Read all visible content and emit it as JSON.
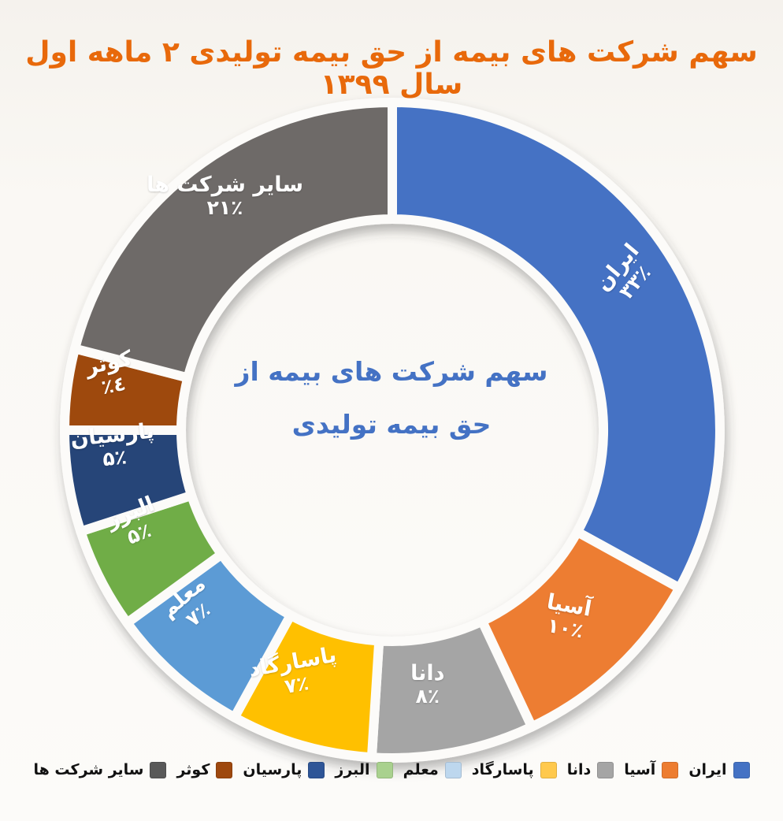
{
  "page": {
    "background": "#FAF8F4"
  },
  "title": {
    "text": "سهم شرکت های بیمه از حق بیمه تولیدی ۲ ماهه اول سال ۱۳۹۹",
    "color": "#E8690B"
  },
  "center_label": {
    "line1": "سهم شرکت های بیمه از",
    "line2": "حق بیمه تولیدی",
    "color": "#4472C4"
  },
  "chart_data": {
    "type": "pie",
    "variant": "doughnut",
    "title": "سهم شرکت های بیمه از حق بیمه تولیدی ۲ ماهه اول سال ۱۳۹۹",
    "start_angle_deg": 0,
    "direction": "clockwise",
    "legend_position": "bottom",
    "slice_label_color": "#FFFFFF",
    "categories": [
      "ایران",
      "آسیا",
      "دانا",
      "پاسارگاد",
      "معلم",
      "البرز",
      "پارسیان",
      "کوثر",
      "سایر شرکت ها"
    ],
    "values": [
      33,
      10,
      8,
      7,
      7,
      5,
      5,
      4,
      21
    ],
    "series": [
      {
        "id": "iran",
        "label": "ایران",
        "value": 33,
        "percent_label": "۳۳٪",
        "color": "#4472C4",
        "legend_color": "#4472C4"
      },
      {
        "id": "asia",
        "label": "آسیا",
        "value": 10,
        "percent_label": "۱۰٪",
        "color": "#ED7D31",
        "legend_color": "#ED7D31"
      },
      {
        "id": "dana",
        "label": "دانا",
        "value": 8,
        "percent_label": "۸٪",
        "color": "#A5A5A5",
        "legend_color": "#A5A5A5"
      },
      {
        "id": "pasargad",
        "label": "پاسارگاد",
        "value": 7,
        "percent_label": "۷٪",
        "color": "#FFC000",
        "legend_color": "#FFC94D"
      },
      {
        "id": "moallem",
        "label": "معلم",
        "value": 7,
        "percent_label": "۷٪",
        "color": "#5B9BD5",
        "legend_color": "#BDD7EE"
      },
      {
        "id": "alborz",
        "label": "البرز",
        "value": 5,
        "percent_label": "۵٪",
        "color": "#70AD47",
        "legend_color": "#A9D18E"
      },
      {
        "id": "parsian",
        "label": "پارسیان",
        "value": 5,
        "percent_label": "۵٪",
        "color": "#264478",
        "legend_color": "#2E5597"
      },
      {
        "id": "kowsar",
        "label": "کوثر",
        "value": 4,
        "percent_label": "٤٪",
        "color": "#9E480E",
        "legend_color": "#9E480E"
      },
      {
        "id": "others",
        "label": "سایر شرکت ها",
        "value": 21,
        "percent_label": "۲۱٪",
        "color": "#6E6A67",
        "legend_color": "#595959"
      }
    ]
  }
}
